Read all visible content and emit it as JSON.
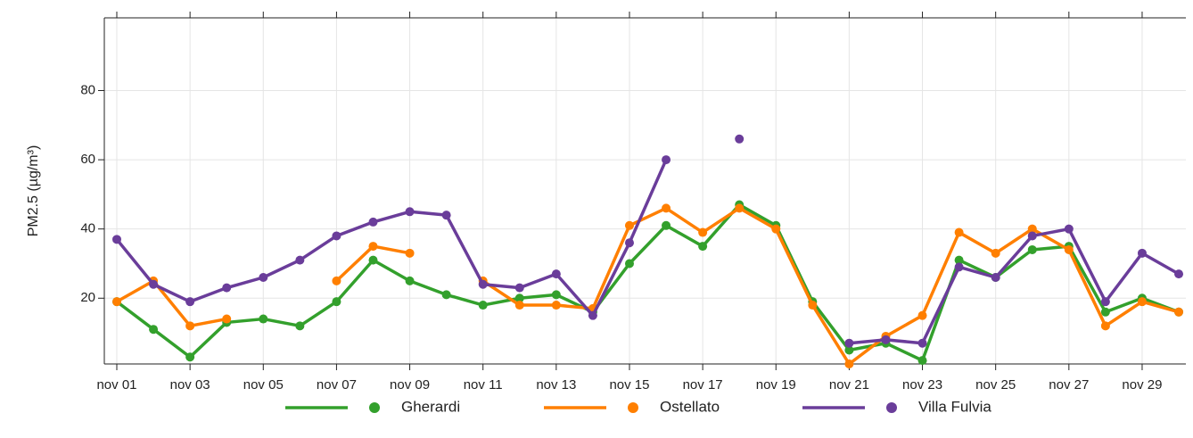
{
  "chart_data": {
    "type": "line",
    "y_label": "PM2.5 (µg/m³)",
    "categories": [
      "nov 01",
      null,
      "nov 03",
      null,
      "nov 05",
      null,
      "nov 07",
      null,
      "nov 09",
      null,
      "nov 11",
      null,
      "nov 13",
      null,
      "nov 15",
      null,
      "nov 17",
      null,
      "nov 19",
      null,
      "nov 21",
      null,
      "nov 23",
      null,
      "nov 25",
      null,
      "nov 27",
      null,
      "nov 29",
      null
    ],
    "series": [
      {
        "name": "Gherardi",
        "color": "#33a02c",
        "values": [
          19,
          11,
          3,
          13,
          14,
          12,
          19,
          31,
          25,
          21,
          18,
          20,
          21,
          16,
          30,
          41,
          35,
          47,
          41,
          19,
          5,
          7,
          2,
          31,
          26,
          34,
          35,
          16,
          20,
          16
        ]
      },
      {
        "name": "Ostellato",
        "color": "#ff7f00",
        "values": [
          19,
          25,
          12,
          14,
          null,
          null,
          25,
          35,
          33,
          null,
          25,
          18,
          18,
          17,
          41,
          46,
          39,
          46,
          40,
          18,
          1,
          9,
          15,
          39,
          33,
          40,
          34,
          12,
          19,
          16
        ]
      },
      {
        "name": "Villa Fulvia",
        "color": "#6a3d9a",
        "values": [
          37,
          24,
          19,
          23,
          26,
          31,
          38,
          42,
          45,
          44,
          24,
          23,
          27,
          15,
          36,
          60,
          null,
          66,
          null,
          null,
          7,
          8,
          7,
          29,
          26,
          38,
          40,
          19,
          33,
          27
        ]
      }
    ],
    "ylim": [
      1,
      101
    ],
    "yticks": [
      20,
      40,
      60,
      80
    ],
    "grid": true,
    "legend": "bottom"
  }
}
